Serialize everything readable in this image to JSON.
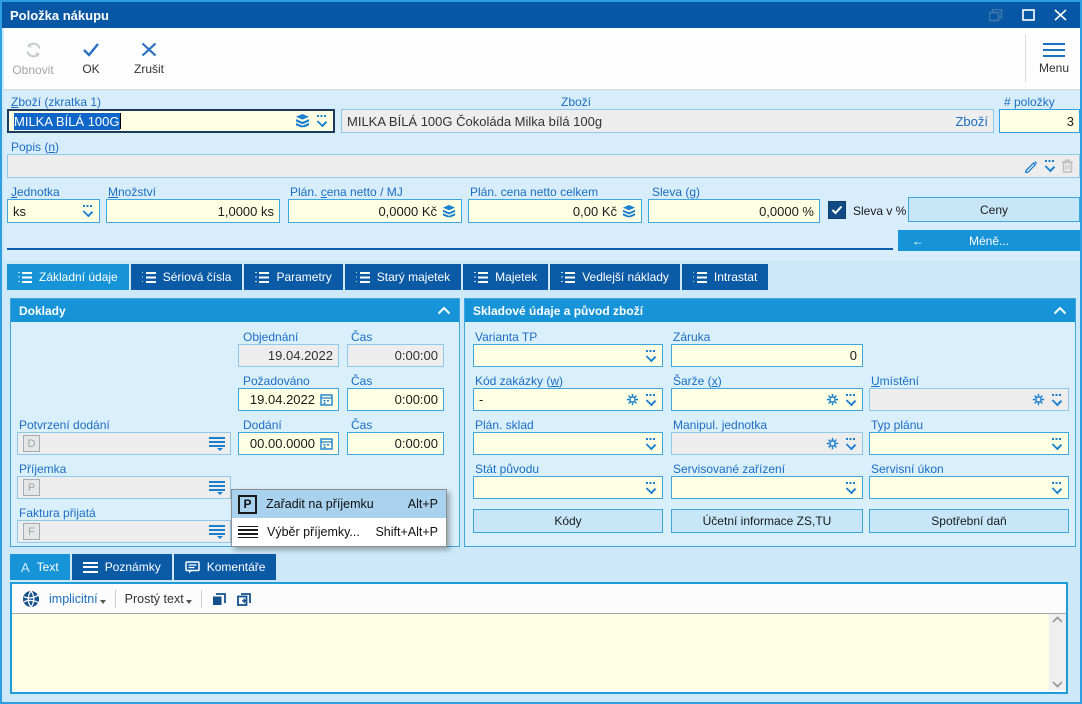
{
  "window": {
    "title": "Položka nákupu"
  },
  "toolbar": {
    "refresh_label": "Obnovit",
    "ok_label": "OK",
    "cancel_label": "Zrušit",
    "menu_label": "Menu"
  },
  "header": {
    "shortcut_field": {
      "label": "Zboží (zkratka 1)",
      "accel": "Z",
      "value": "MILKA BÍLÁ 100G"
    },
    "goods_field": {
      "label": "Zboží",
      "value": "MILKA BÍLÁ 100G Čokoláda Milka bílá 100g",
      "suffix": "Zboží"
    },
    "items_count_field": {
      "label": "# položky",
      "value": "3"
    },
    "description_field": {
      "label": "Popis (n)",
      "accel": "n",
      "value": ""
    }
  },
  "quantity_row": {
    "unit": {
      "label": "Jednotka",
      "accel": "J",
      "value": "ks"
    },
    "quantity": {
      "label": "Množství",
      "accel": "M",
      "value": "1,0000 ks"
    },
    "unit_price": {
      "label": "Plán. cena netto / MJ",
      "accel": "c",
      "value": "0,0000 Kč"
    },
    "total_price": {
      "label": "Plán. cena netto celkem",
      "value": "0,00 Kč"
    },
    "discount": {
      "label": "Sleva (g)",
      "accel": "g",
      "value": "0,0000 %"
    },
    "discount_checkbox": {
      "label": "Sleva v %",
      "checked": true
    },
    "prices_button": "Ceny",
    "less_button": {
      "arrow": "←",
      "label": "Méně..."
    }
  },
  "tabs": [
    {
      "label": "Základní údaje",
      "active": true
    },
    {
      "label": "Sériová čísla",
      "active": false
    },
    {
      "label": "Parametry",
      "active": false
    },
    {
      "label": "Starý majetek",
      "active": false
    },
    {
      "label": "Majetek",
      "active": false
    },
    {
      "label": "Vedlejší náklady",
      "active": false
    },
    {
      "label": "Intrastat",
      "active": false
    }
  ],
  "documents_panel": {
    "title": "Doklady",
    "order": {
      "label": "Objednání",
      "value": "19.04.2022",
      "time_label": "Čas",
      "time_value": "0:00:00"
    },
    "requested": {
      "label": "Požadováno",
      "value": "19.04.2022",
      "time_label": "Čas",
      "time_value": "0:00:00"
    },
    "delivery_confirmation": {
      "label": "Potvrzení dodání",
      "badge": "D"
    },
    "delivery": {
      "label": "Dodání",
      "value": "00.00.0000",
      "time_label": "Čas",
      "time_value": "0:00:00"
    },
    "receipt": {
      "label": "Příjemka",
      "badge": "P"
    },
    "invoice": {
      "label": "Faktura přijatá",
      "badge": "F"
    }
  },
  "context_menu": {
    "items": [
      {
        "icon": "P",
        "label": "Zařadit na příjemku",
        "shortcut": "Alt+P"
      },
      {
        "icon": "list",
        "label": "Výběr příjemky...",
        "shortcut": "Shift+Alt+P"
      }
    ]
  },
  "stock_panel": {
    "title": "Skladové údaje a původ zboží",
    "variant": {
      "label": "Varianta TP",
      "value": ""
    },
    "warranty": {
      "label": "Záruka",
      "value": "0"
    },
    "order_code": {
      "label": "Kód zakázky (w)",
      "accel": "w",
      "value": "-"
    },
    "batch": {
      "label": "Šarže (x)",
      "accel": "x",
      "value": ""
    },
    "location": {
      "label": "Umístění",
      "accel": "U",
      "value": ""
    },
    "plan_warehouse": {
      "label": "Plán. sklad",
      "value": ""
    },
    "handling_unit": {
      "label": "Manipul. jednotka",
      "value": ""
    },
    "plan_type": {
      "label": "Typ plánu",
      "value": ""
    },
    "origin_country": {
      "label": "Stát původu",
      "value": ""
    },
    "serviced_device": {
      "label": "Servisované zařízení",
      "value": ""
    },
    "service_task": {
      "label": "Servisní úkon",
      "value": ""
    },
    "codes_button": "Kódy",
    "accounting_button": "Účetní informace ZS,TU",
    "excise_button": "Spotřební daň"
  },
  "bottom_tabs": [
    {
      "label": "Text",
      "icon": "A",
      "active": true
    },
    {
      "label": "Poznámky",
      "active": false
    },
    {
      "label": "Komentáře",
      "active": false
    }
  ],
  "text_toolbar": {
    "language_button": "implicitní",
    "format_button": "Prostý text"
  },
  "text_area": {
    "value": ""
  },
  "colors": {
    "titlebar": "#0857a4",
    "accent_blue": "#1793d7",
    "dark_tab_blue": "#0b5aa6",
    "field_yellow": "#ffffe3",
    "border_cyan": "#3fa6e0",
    "selection_blue": "#0e67c8"
  }
}
